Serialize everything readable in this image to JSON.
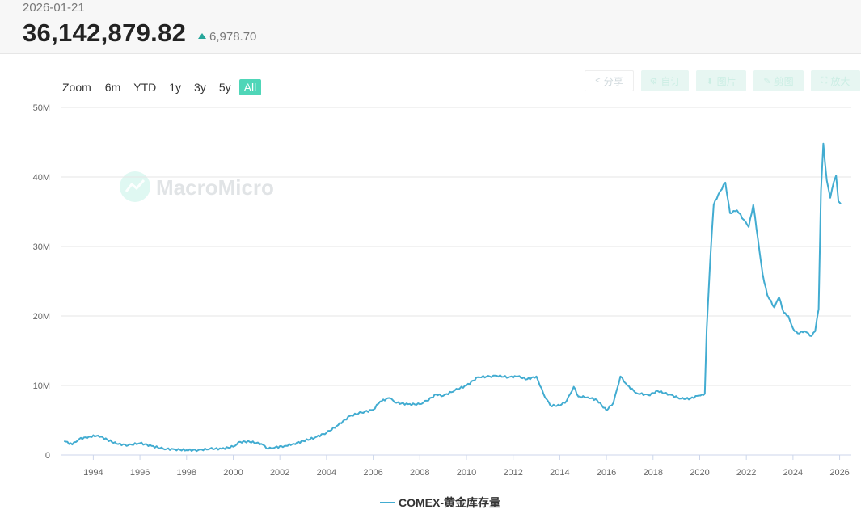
{
  "header": {
    "date": "2026-01-21",
    "price": "36,142,879.82",
    "change": "6,978.70",
    "change_direction": "up",
    "up_color": "#26a69a"
  },
  "zoom": {
    "label": "Zoom",
    "options": [
      "6m",
      "YTD",
      "1y",
      "3y",
      "5y",
      "All"
    ],
    "active": "All"
  },
  "toolbar": {
    "buttons": [
      {
        "label": "分享",
        "icon": "share-icon"
      },
      {
        "label": "自订",
        "icon": "gear-icon"
      },
      {
        "label": "图片",
        "icon": "download-icon"
      },
      {
        "label": "剪图",
        "icon": "pencil-icon"
      },
      {
        "label": "放大",
        "icon": "expand-icon"
      }
    ]
  },
  "watermark": "MacroMicro",
  "chart_data": {
    "type": "line",
    "line_color": "#42acd1",
    "grid": true,
    "legend_position": "bottom-center",
    "xlabel": "",
    "ylabel": "",
    "xlim": [
      1992.6,
      2026.5
    ],
    "ylim": [
      0,
      50000000
    ],
    "y_ticks": [
      0,
      10000000,
      20000000,
      30000000,
      40000000,
      50000000
    ],
    "y_tick_labels": [
      "0",
      "10M",
      "20M",
      "30M",
      "40M",
      "50M"
    ],
    "x_ticks": [
      1994,
      1996,
      1998,
      2000,
      2002,
      2004,
      2006,
      2008,
      2010,
      2012,
      2014,
      2016,
      2018,
      2020,
      2022,
      2024,
      2026
    ],
    "x_tick_labels": [
      "1994",
      "1996",
      "1998",
      "2000",
      "2002",
      "2004",
      "2006",
      "2008",
      "2010",
      "2012",
      "2014",
      "2016",
      "2018",
      "2020",
      "2022",
      "2024",
      "2026"
    ],
    "series": [
      {
        "name": "COMEX-黄金库存量",
        "x": [
          1992.75,
          1993.1,
          1993.4,
          1993.8,
          1994.2,
          1994.6,
          1995.0,
          1995.5,
          1996.0,
          1996.5,
          1997.0,
          1997.5,
          1998.0,
          1998.5,
          1999.0,
          1999.5,
          2000.0,
          2000.3,
          2000.7,
          2001.2,
          2001.5,
          2001.8,
          2002.2,
          2002.6,
          2003.0,
          2003.5,
          2004.0,
          2004.5,
          2005.0,
          2005.5,
          2006.0,
          2006.3,
          2006.7,
          2007.0,
          2007.5,
          2008.0,
          2008.3,
          2008.7,
          2009.0,
          2009.5,
          2010.0,
          2010.5,
          2011.0,
          2011.3,
          2011.8,
          2012.2,
          2012.6,
          2013.0,
          2013.3,
          2013.6,
          2014.0,
          2014.3,
          2014.6,
          2014.8,
          2015.2,
          2015.6,
          2016.0,
          2016.3,
          2016.6,
          2016.9,
          2017.3,
          2017.8,
          2018.2,
          2018.7,
          2019.2,
          2019.6,
          2019.9,
          2020.1,
          2020.22,
          2020.3,
          2020.45,
          2020.6,
          2020.8,
          2021.1,
          2021.3,
          2021.6,
          2021.9,
          2022.1,
          2022.3,
          2022.5,
          2022.7,
          2022.9,
          2023.2,
          2023.4,
          2023.6,
          2023.8,
          2024.0,
          2024.2,
          2024.5,
          2024.8,
          2024.95,
          2025.1,
          2025.2,
          2025.3,
          2025.45,
          2025.6,
          2025.75,
          2025.85,
          2025.95,
          2026.05
        ],
        "values": [
          2000000,
          1500000,
          2300000,
          2600000,
          2800000,
          2200000,
          1600000,
          1400000,
          1700000,
          1300000,
          900000,
          800000,
          700000,
          700000,
          900000,
          900000,
          1200000,
          1900000,
          1900000,
          1600000,
          900000,
          1100000,
          1300000,
          1600000,
          2000000,
          2500000,
          3200000,
          4300000,
          5600000,
          6100000,
          6500000,
          7700000,
          8200000,
          7500000,
          7300000,
          7300000,
          7800000,
          8700000,
          8500000,
          9300000,
          10000000,
          11200000,
          11300000,
          11400000,
          11200000,
          11300000,
          10900000,
          11300000,
          8800000,
          7100000,
          7100000,
          7800000,
          9800000,
          8400000,
          8300000,
          7900000,
          6400000,
          7500000,
          11300000,
          10000000,
          8900000,
          8600000,
          9200000,
          8700000,
          8100000,
          8100000,
          8500000,
          8700000,
          8800000,
          18000000,
          28000000,
          36000000,
          37500000,
          39200000,
          34800000,
          35200000,
          33800000,
          32800000,
          36000000,
          31000000,
          26000000,
          23000000,
          21200000,
          22700000,
          20500000,
          20000000,
          18200000,
          17500000,
          17800000,
          17100000,
          17800000,
          21000000,
          38000000,
          44800000,
          39500000,
          37000000,
          39300000,
          40200000,
          36500000,
          36140000
        ]
      }
    ]
  },
  "legend": {
    "label": "COMEX-黄金库存量"
  }
}
